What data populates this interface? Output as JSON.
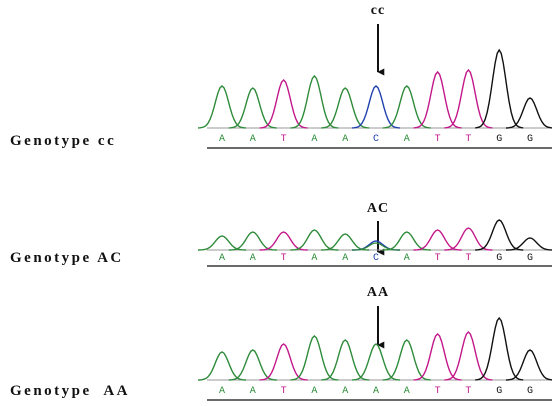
{
  "panels": [
    {
      "label": "Genotype cc",
      "marker": "cc",
      "bases": [
        "A",
        "A",
        "T",
        "A",
        "A",
        "C",
        "A",
        "T",
        "T",
        "G",
        "G"
      ]
    },
    {
      "label": "Genotype AC",
      "marker": "AC",
      "bases": [
        "A",
        "A",
        "T",
        "A",
        "A",
        "C",
        "A",
        "T",
        "T",
        "G",
        "G"
      ]
    },
    {
      "label": "Genotype  AA",
      "marker": "AA",
      "bases": [
        "A",
        "A",
        "T",
        "A",
        "A",
        "A",
        "A",
        "T",
        "T",
        "G",
        "G"
      ]
    }
  ]
}
